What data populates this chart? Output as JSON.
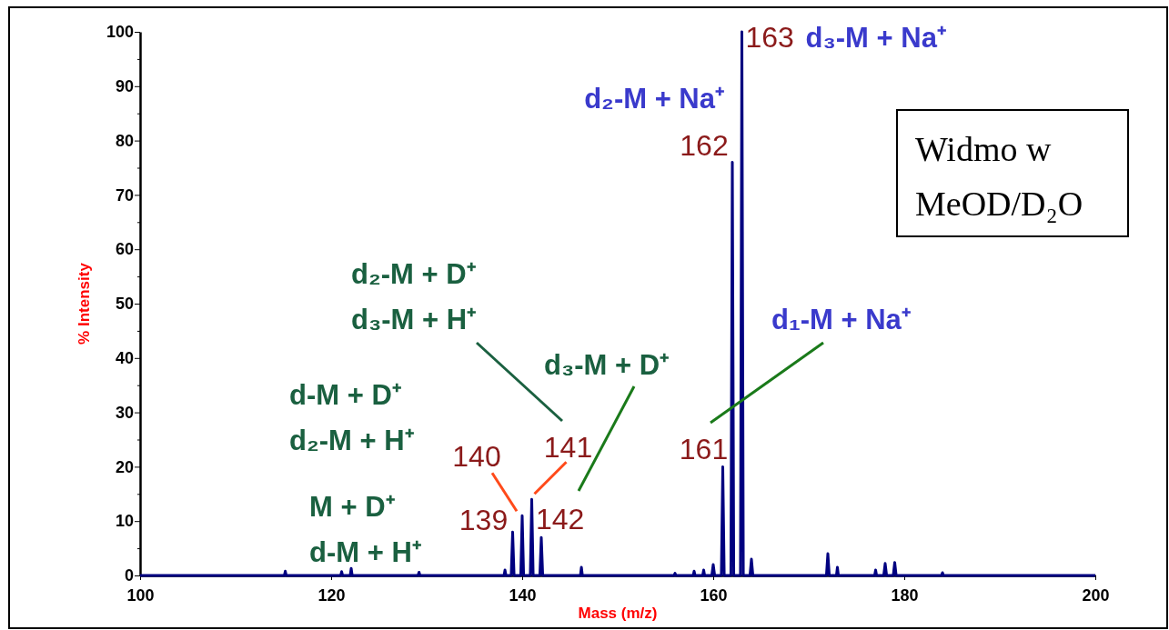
{
  "chart_data": {
    "type": "line",
    "xlabel": "Mass (m/z)",
    "ylabel": "% Intensity",
    "xlim": [
      100,
      200
    ],
    "xticks": [
      100,
      120,
      140,
      160,
      180,
      200
    ],
    "ylim": [
      0,
      100
    ],
    "yticks": [
      0,
      {
        "value": 5,
        "label": null
      },
      10,
      {
        "value": 15,
        "label": null
      },
      20,
      {
        "value": 25,
        "label": null
      },
      30,
      {
        "value": 35,
        "label": null
      },
      40,
      {
        "value": 45,
        "label": null
      },
      50,
      {
        "value": 55,
        "label": null
      },
      60,
      {
        "value": 65,
        "label": null
      },
      70,
      {
        "value": 75,
        "label": null
      },
      80,
      {
        "value": 85,
        "label": null
      },
      90,
      {
        "value": 95,
        "label": null
      },
      100
    ],
    "series": [
      {
        "color": "#000080",
        "x": [
          100,
          115.1,
          115.2,
          115.3,
          121,
          121.1,
          121.2,
          122,
          122.1,
          122.2,
          129.1,
          129.2,
          129.3,
          138.1,
          138.2,
          138.3,
          138.85,
          139,
          139.15,
          139.85,
          140,
          140.15,
          140.85,
          141,
          141.15,
          141.85,
          142,
          142.15,
          146.1,
          146.2,
          146.3,
          155.9,
          156,
          156.1,
          157.9,
          158,
          158.1,
          158.9,
          159,
          159.1,
          159.85,
          160,
          160.15,
          160.85,
          161,
          161.15,
          161.85,
          162,
          162.15,
          162.85,
          163,
          163.15,
          163.85,
          164,
          164.15,
          171.85,
          172,
          172.15,
          172.9,
          173,
          173.1,
          176.9,
          177,
          177.1,
          177.85,
          178,
          178.15,
          178.85,
          179,
          179.15,
          183.9,
          184,
          184.1,
          200
        ],
        "values": [
          0,
          0,
          0.8,
          0,
          0,
          0.7,
          0,
          0,
          1.3,
          0,
          0,
          0.6,
          0,
          0,
          1,
          0,
          0,
          8,
          0,
          0,
          11,
          0,
          0,
          14,
          0,
          0,
          7,
          0,
          0,
          1.5,
          0,
          0,
          0.4,
          0,
          0,
          0.8,
          0,
          0,
          1,
          0,
          0,
          2,
          0,
          0,
          20,
          0,
          0,
          76,
          0,
          0,
          100,
          0,
          0,
          3,
          0,
          0,
          4,
          0,
          0,
          1.5,
          0,
          0,
          1,
          0,
          0,
          2.2,
          0,
          0,
          2.4,
          0,
          0,
          0.5,
          0,
          0
        ]
      }
    ],
    "annotations": [
      {
        "text": "163",
        "x": 163,
        "y": 100
      },
      {
        "text": "d₃-M + Na⁺",
        "x": 163,
        "y": 100
      },
      {
        "text": "162",
        "x": 162,
        "y": 76
      },
      {
        "text": "d₂-M + Na⁺",
        "x": 162,
        "y": 76
      },
      {
        "text": "161",
        "x": 161,
        "y": 20
      },
      "d₁-M + Na⁺",
      {
        "text": "142",
        "x": 142,
        "y": 7
      },
      "d₃-M + D⁺",
      {
        "text": "141",
        "x": 141,
        "y": 14
      },
      "d₂-M + D⁺\nd₃-M + H⁺",
      {
        "text": "140",
        "x": 140,
        "y": 11
      },
      "d-M + D⁺\nd₂-M + H⁺",
      {
        "text": "139",
        "x": 139,
        "y": 8
      },
      "M + D⁺\nd-M + H⁺",
      "Widmo w\nMeOD/D₂O"
    ]
  }
}
